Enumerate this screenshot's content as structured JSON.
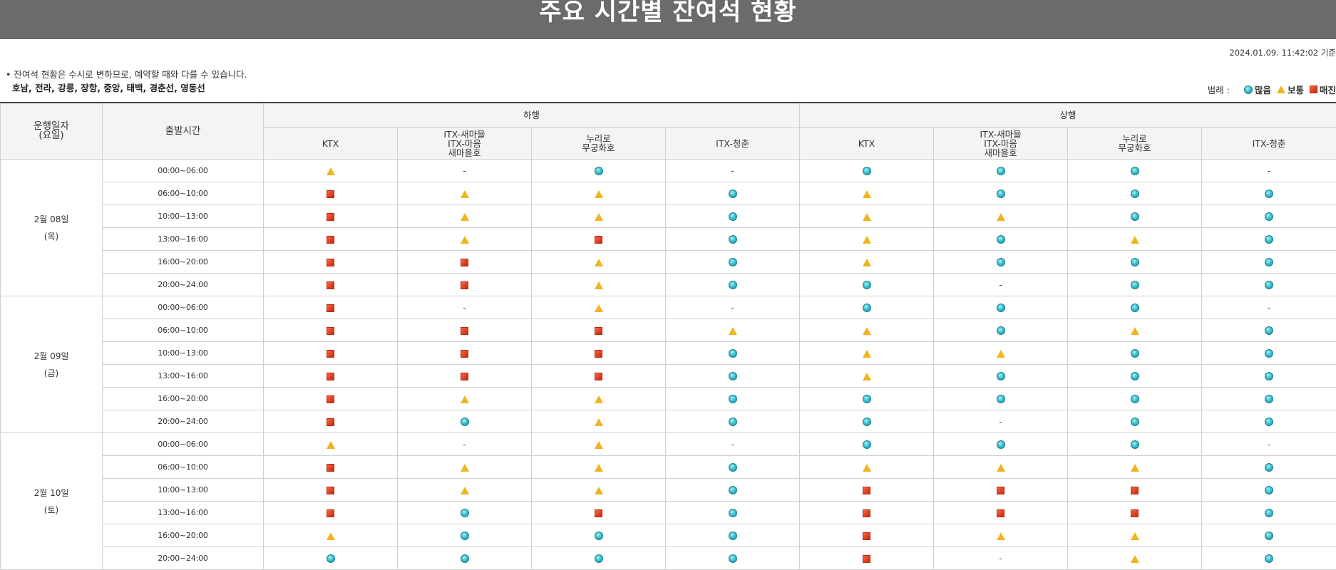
{
  "page": {
    "title": "주요 시간별 잔여석 현황",
    "timestamp": "2024.01.09. 11:42:02 기준",
    "notice": "• 잔여석 현황은 수시로 변하므로, 예약할 때와 다를 수 있습니다.",
    "lines": "호남, 전라, 강릉, 장항, 중앙, 태백, 경춘선, 영동선"
  },
  "legend": {
    "label": "범례 :",
    "plenty": "많음",
    "normal": "보통",
    "soldout": "매진"
  },
  "status_icons": {
    "plenty": "cyan-circle-icon",
    "normal": "yellow-triangle-icon",
    "soldout": "red-square-icon"
  },
  "colors": {
    "title_bar": "#6d6a6a",
    "plenty": "#3cc0cf",
    "normal": "#f0b41e",
    "soldout": "#e23d1e"
  },
  "table": {
    "head": {
      "date": "운행일자\n(요일)",
      "time": "출발시간",
      "down": "하행",
      "up": "상행",
      "trains": [
        "KTX",
        "ITX-새마을\nITX-마음\n새마을호",
        "누리로\n무궁화호",
        "ITX-청춘"
      ]
    },
    "days": [
      {
        "date": "2월 08일",
        "weekday": "(목)",
        "rows": [
          {
            "time": "00:00~06:00",
            "cells": [
              "normal",
              "none",
              "plenty",
              "none",
              "plenty",
              "plenty",
              "plenty",
              "none"
            ]
          },
          {
            "time": "06:00~10:00",
            "cells": [
              "soldout",
              "normal",
              "normal",
              "plenty",
              "normal",
              "plenty",
              "plenty",
              "plenty"
            ]
          },
          {
            "time": "10:00~13:00",
            "cells": [
              "soldout",
              "normal",
              "normal",
              "plenty",
              "normal",
              "normal",
              "plenty",
              "plenty"
            ]
          },
          {
            "time": "13:00~16:00",
            "cells": [
              "soldout",
              "normal",
              "soldout",
              "plenty",
              "normal",
              "plenty",
              "normal",
              "plenty"
            ]
          },
          {
            "time": "16:00~20:00",
            "cells": [
              "soldout",
              "soldout",
              "normal",
              "plenty",
              "normal",
              "plenty",
              "plenty",
              "plenty"
            ]
          },
          {
            "time": "20:00~24:00",
            "cells": [
              "soldout",
              "soldout",
              "normal",
              "plenty",
              "plenty",
              "none",
              "plenty",
              "plenty"
            ]
          }
        ]
      },
      {
        "date": "2월 09일",
        "weekday": "(금)",
        "rows": [
          {
            "time": "00:00~06:00",
            "cells": [
              "soldout",
              "none",
              "normal",
              "none",
              "plenty",
              "plenty",
              "plenty",
              "none"
            ]
          },
          {
            "time": "06:00~10:00",
            "cells": [
              "soldout",
              "soldout",
              "soldout",
              "normal",
              "normal",
              "plenty",
              "normal",
              "plenty"
            ]
          },
          {
            "time": "10:00~13:00",
            "cells": [
              "soldout",
              "soldout",
              "soldout",
              "plenty",
              "normal",
              "normal",
              "plenty",
              "plenty"
            ]
          },
          {
            "time": "13:00~16:00",
            "cells": [
              "soldout",
              "soldout",
              "soldout",
              "plenty",
              "normal",
              "plenty",
              "plenty",
              "plenty"
            ]
          },
          {
            "time": "16:00~20:00",
            "cells": [
              "soldout",
              "normal",
              "normal",
              "plenty",
              "plenty",
              "plenty",
              "plenty",
              "plenty"
            ]
          },
          {
            "time": "20:00~24:00",
            "cells": [
              "soldout",
              "plenty",
              "normal",
              "plenty",
              "plenty",
              "none",
              "plenty",
              "plenty"
            ]
          }
        ]
      },
      {
        "date": "2월 10일",
        "weekday": "(토)",
        "rows": [
          {
            "time": "00:00~06:00",
            "cells": [
              "normal",
              "none",
              "normal",
              "none",
              "plenty",
              "plenty",
              "plenty",
              "none"
            ]
          },
          {
            "time": "06:00~10:00",
            "cells": [
              "soldout",
              "normal",
              "normal",
              "plenty",
              "normal",
              "normal",
              "normal",
              "plenty"
            ]
          },
          {
            "time": "10:00~13:00",
            "cells": [
              "soldout",
              "normal",
              "normal",
              "plenty",
              "soldout",
              "soldout",
              "soldout",
              "plenty"
            ]
          },
          {
            "time": "13:00~16:00",
            "cells": [
              "soldout",
              "plenty",
              "soldout",
              "plenty",
              "soldout",
              "soldout",
              "soldout",
              "plenty"
            ]
          },
          {
            "time": "16:00~20:00",
            "cells": [
              "normal",
              "plenty",
              "plenty",
              "plenty",
              "soldout",
              "normal",
              "normal",
              "plenty"
            ]
          },
          {
            "time": "20:00~24:00",
            "cells": [
              "plenty",
              "plenty",
              "plenty",
              "plenty",
              "soldout",
              "none",
              "normal",
              "plenty"
            ]
          }
        ]
      }
    ],
    "none_symbol": "-"
  }
}
